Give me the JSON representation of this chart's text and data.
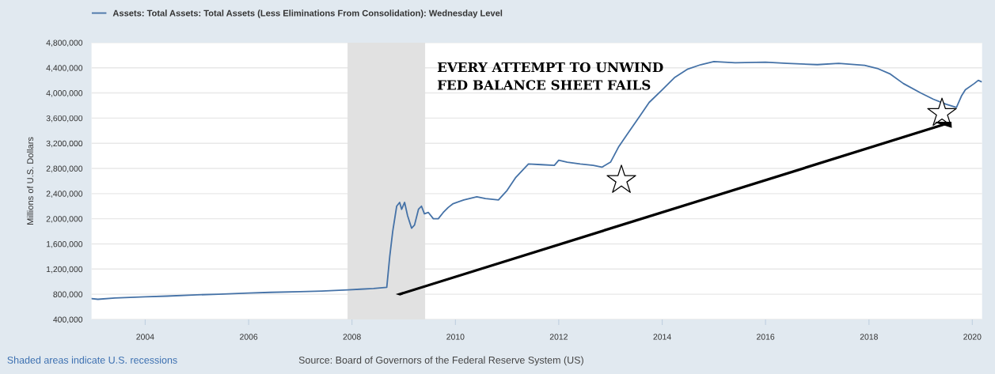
{
  "chart_data": {
    "type": "line",
    "ylabel": "Millions of U.S. Dollars",
    "x": [
      "2002-12-18",
      "2003-02",
      "2003-06",
      "2004-01",
      "2004-06",
      "2005-01",
      "2005-06",
      "2006-01",
      "2006-06",
      "2007-01",
      "2007-06",
      "2007-12",
      "2008-03",
      "2008-06",
      "2008-09-03",
      "2008-09-24",
      "2008-10-15",
      "2008-11-12",
      "2008-12-03",
      "2008-12-17",
      "2009-01-07",
      "2009-01-28",
      "2009-02-25",
      "2009-03-18",
      "2009-04-15",
      "2009-05-06",
      "2009-05-27",
      "2009-06-24",
      "2009-07-29",
      "2009-09-02",
      "2009-10-07",
      "2009-11-11",
      "2009-12-16",
      "2010-03",
      "2010-06",
      "2010-08",
      "2010-11",
      "2011-01",
      "2011-03",
      "2011-06",
      "2011-09",
      "2011-12",
      "2012-01",
      "2012-03",
      "2012-06",
      "2012-09",
      "2012-11",
      "2013-01",
      "2013-03",
      "2013-05",
      "2013-08",
      "2013-10",
      "2014-01",
      "2014-04",
      "2014-07",
      "2014-10",
      "2015-01",
      "2015-06",
      "2016-01",
      "2016-06",
      "2017-01",
      "2017-06",
      "2017-12",
      "2018-03",
      "2018-06",
      "2018-09",
      "2019-01",
      "2019-04",
      "2019-07",
      "2019-09-11",
      "2019-10-16",
      "2019-11-13",
      "2020-01-15",
      "2020-02-12",
      "2020-03-04"
    ],
    "series": [
      {
        "name": "Assets: Total Assets: Total Assets (Less Eliminations From Consolidation): Wednesday Level",
        "color": "#4572a7",
        "values": [
          730000,
          720000,
          740000,
          760000,
          770000,
          790000,
          800000,
          820000,
          830000,
          840000,
          850000,
          870000,
          880000,
          890000,
          910000,
          1400000,
          1800000,
          2200000,
          2260000,
          2150000,
          2260000,
          2050000,
          1850000,
          1900000,
          2150000,
          2200000,
          2080000,
          2100000,
          2000000,
          2000000,
          2100000,
          2180000,
          2240000,
          2300000,
          2350000,
          2320000,
          2300000,
          2450000,
          2650000,
          2870000,
          2860000,
          2850000,
          2930000,
          2900000,
          2870000,
          2850000,
          2820000,
          2900000,
          3150000,
          3350000,
          3650000,
          3850000,
          4050000,
          4250000,
          4380000,
          4450000,
          4500000,
          4480000,
          4490000,
          4470000,
          4450000,
          4470000,
          4440000,
          4390000,
          4300000,
          4150000,
          4000000,
          3900000,
          3820000,
          3770000,
          3950000,
          4050000,
          4150000,
          4200000,
          4180000
        ]
      }
    ],
    "xlim": [
      "2002-12-18",
      "2020-03-10"
    ],
    "xticks": [
      "2004",
      "2006",
      "2008",
      "2010",
      "2012",
      "2014",
      "2016",
      "2018",
      "2020"
    ],
    "ylim": [
      400000,
      4800000
    ],
    "yticks": [
      {
        "value": 400000,
        "label": "400,000"
      },
      {
        "value": 800000,
        "label": "800,000"
      },
      {
        "value": 1200000,
        "label": "1,200,000"
      },
      {
        "value": 1600000,
        "label": "1,600,000"
      },
      {
        "value": 2000000,
        "label": "2,000,000"
      },
      {
        "value": 2400000,
        "label": "2,400,000"
      },
      {
        "value": 2800000,
        "label": "2,800,000"
      },
      {
        "value": 3200000,
        "label": "3,200,000"
      },
      {
        "value": 3600000,
        "label": "3,600,000"
      },
      {
        "value": 4000000,
        "label": "4,000,000"
      },
      {
        "value": 4400000,
        "label": "4,400,000"
      },
      {
        "value": 4800000,
        "label": "4,800,000"
      }
    ],
    "bands": [
      {
        "axis": "x",
        "from": "2007-12",
        "to": "2009-06",
        "color": "#e1e1e1"
      }
    ],
    "grid": "y",
    "legend": "top left",
    "annotations": [
      "EVERY ATTEMPT TO UNWIND\nFED BALANCE SHEET FAILS",
      "Shaded areas indicate U.S. recessions",
      "Source: Board of Governors of the Federal Reserve System (US)"
    ]
  }
}
